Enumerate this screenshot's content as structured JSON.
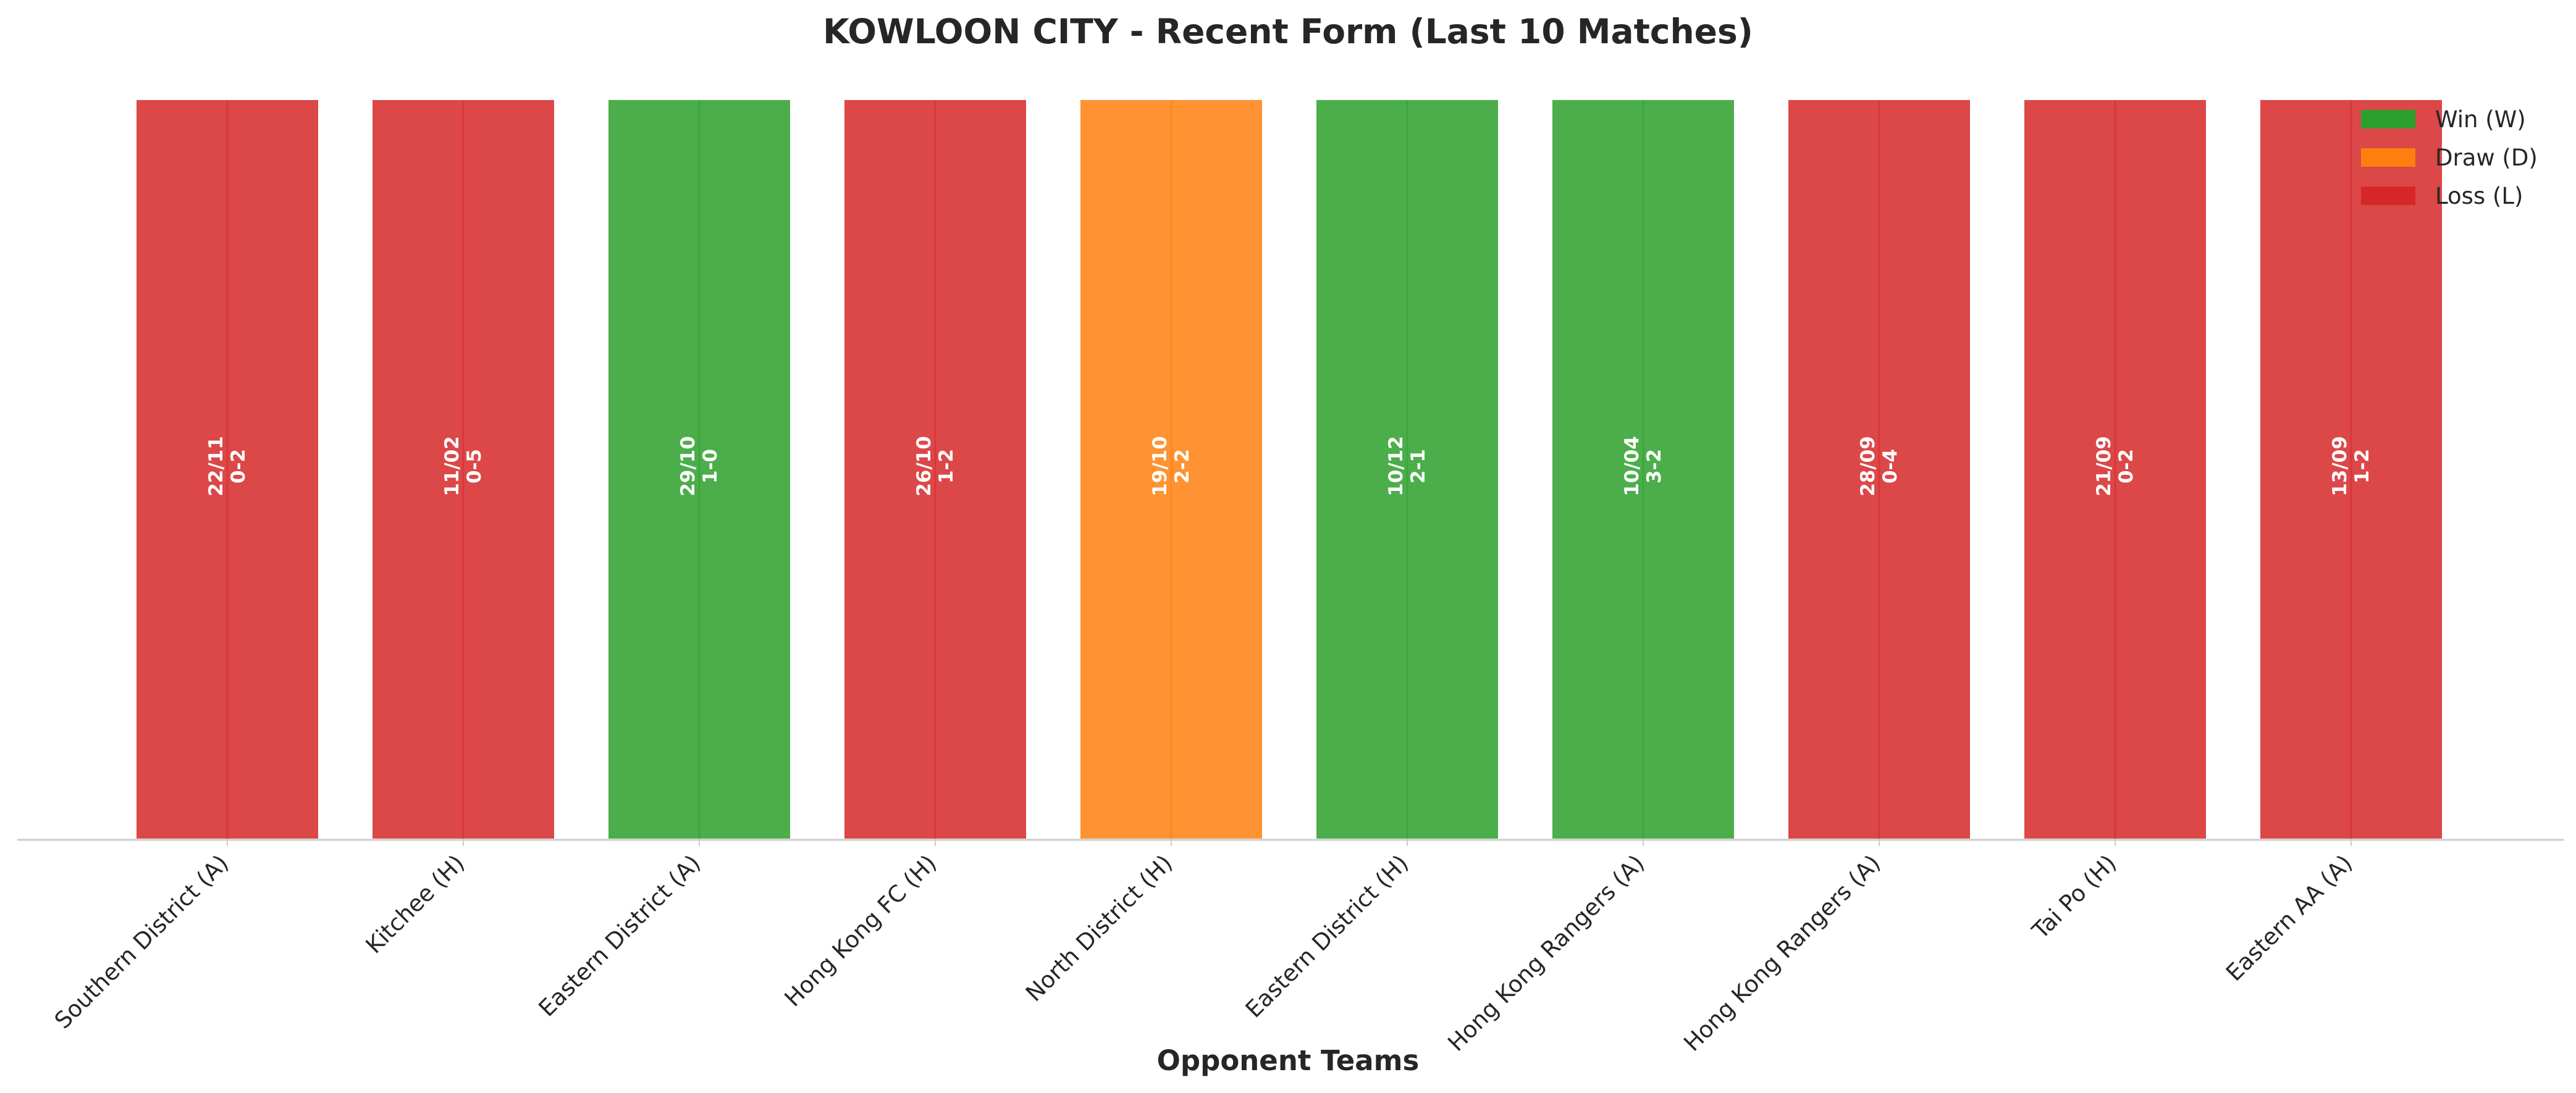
{
  "chart_data": {
    "type": "bar",
    "title": "KOWLOON CITY - Recent Form (Last 10 Matches)",
    "xlabel": "Opponent Teams",
    "ylabel": "",
    "ylim": [
      0,
      1
    ],
    "grid": false,
    "legend_position": "top-right",
    "categories": [
      "Southern District (A)",
      "Kitchee (H)",
      "Eastern District (A)",
      "Hong Kong FC (H)",
      "North District (H)",
      "Eastern District (H)",
      "Hong Kong Rangers (A)",
      "Hong Kong Rangers (A)",
      "Tai Po (H)",
      "Eastern AA (A)"
    ],
    "values": [
      1,
      1,
      1,
      1,
      1,
      1,
      1,
      1,
      1,
      1
    ],
    "results": [
      "L",
      "L",
      "W",
      "L",
      "D",
      "W",
      "W",
      "L",
      "L",
      "L"
    ],
    "dates": [
      "22/11",
      "11/02",
      "29/10",
      "26/10",
      "19/10",
      "10/12",
      "10/04",
      "28/09",
      "21/09",
      "13/09"
    ],
    "scores": [
      "0-2",
      "0-5",
      "1-0",
      "1-2",
      "2-2",
      "2-1",
      "3-2",
      "0-4",
      "0-2",
      "1-2"
    ],
    "legend": [
      {
        "key": "W",
        "label": "Win (W)",
        "color": "#2ca02c"
      },
      {
        "key": "D",
        "label": "Draw (D)",
        "color": "#ff7f0e"
      },
      {
        "key": "L",
        "label": "Loss (L)",
        "color": "#d62728"
      }
    ]
  }
}
